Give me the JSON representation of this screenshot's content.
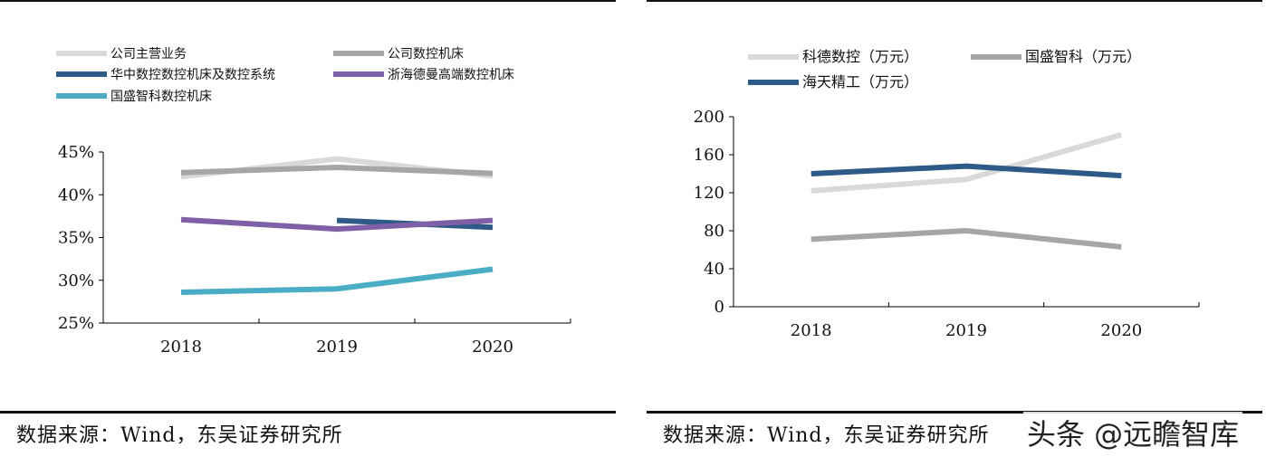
{
  "source_left": "数据来源：Wind，东吴证券研究所",
  "source_right": "数据来源：Wind，东吴证券研究所",
  "watermark": "头条 @远瞻智库",
  "chart_data": [
    {
      "type": "line",
      "title": "",
      "xlabel": "",
      "ylabel": "",
      "x": [
        "2018",
        "2019",
        "2020"
      ],
      "ylim": [
        0.25,
        0.45
      ],
      "yticks": [
        "25%",
        "30%",
        "35%",
        "40%",
        "45%"
      ],
      "ytick_values": [
        0.25,
        0.3,
        0.35,
        0.4,
        0.45
      ],
      "legend": "top",
      "grid": false,
      "series": [
        {
          "name": "公司主营业务",
          "color": "#d9d9d9",
          "values": [
            0.421,
            0.442,
            0.422
          ]
        },
        {
          "name": "公司数控机床",
          "color": "#a6a6a6",
          "values": [
            0.426,
            0.432,
            0.425
          ]
        },
        {
          "name": "华中数控数控机床及数控系统",
          "color": "#2e5a87",
          "values": [
            null,
            0.37,
            0.362
          ]
        },
        {
          "name": "浙海德曼高端数控机床",
          "color": "#7f5fa6",
          "values": [
            0.371,
            0.36,
            0.37
          ]
        },
        {
          "name": "国盛智科数控机床",
          "color": "#4bacc6",
          "values": [
            0.286,
            0.29,
            0.313
          ]
        }
      ]
    },
    {
      "type": "line",
      "title": "",
      "xlabel": "",
      "ylabel": "",
      "x": [
        "2018",
        "2019",
        "2020"
      ],
      "ylim": [
        0,
        200
      ],
      "yticks": [
        "0",
        "40",
        "80",
        "120",
        "160",
        "200"
      ],
      "ytick_values": [
        0,
        40,
        80,
        120,
        160,
        200
      ],
      "legend": "top",
      "grid": false,
      "series": [
        {
          "name": "科德数控（万元）",
          "color": "#d9d9d9",
          "values": [
            122,
            134,
            181
          ]
        },
        {
          "name": "国盛智科（万元）",
          "color": "#a6a6a6",
          "values": [
            71,
            80,
            63
          ]
        },
        {
          "name": "海天精工（万元）",
          "color": "#2e5a87",
          "values": [
            140,
            148,
            138
          ]
        }
      ]
    }
  ]
}
